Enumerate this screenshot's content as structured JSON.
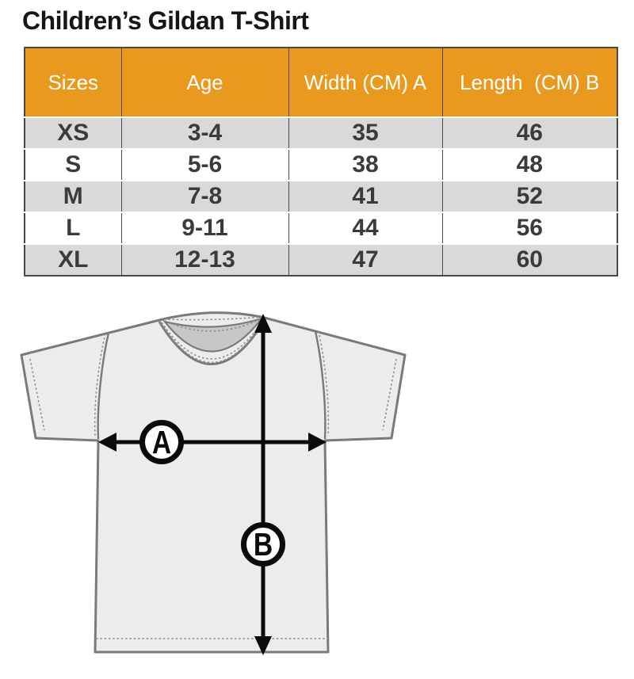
{
  "title": "Children’s Gildan T-Shirt",
  "table": {
    "headers": [
      "Sizes",
      "Age",
      "Width (CM) A",
      "Length  (CM) B"
    ],
    "rows": [
      [
        "XS",
        "3-4",
        "35",
        "46"
      ],
      [
        "S",
        "5-6",
        "38",
        "48"
      ],
      [
        "M",
        "7-8",
        "41",
        "52"
      ],
      [
        "L",
        "9-11",
        "44",
        "56"
      ],
      [
        "XL",
        "12-13",
        "47",
        "60"
      ]
    ]
  },
  "diagram": {
    "width_marker": "A",
    "length_marker": "B"
  },
  "colors": {
    "header_bg": "#E8991E",
    "header_text": "#FFFFFF",
    "row_alt_bg": "#D9D9D9",
    "cell_text": "#3B3B3D",
    "table_border": "#4A4A4A",
    "shirt_fill": "#ECECEC",
    "shirt_outline": "#7A7A7E",
    "neck_fill": "#C7C7C7",
    "marker_color": "#0B0B0B"
  },
  "chart_data": {
    "type": "table",
    "title": "Children’s Gildan T-Shirt",
    "columns": [
      "Sizes",
      "Age",
      "Width (CM) A",
      "Length (CM) B"
    ],
    "rows": [
      [
        "XS",
        "3-4",
        35,
        46
      ],
      [
        "S",
        "5-6",
        38,
        48
      ],
      [
        "M",
        "7-8",
        41,
        52
      ],
      [
        "L",
        "9-11",
        44,
        56
      ],
      [
        "XL",
        "12-13",
        47,
        60
      ]
    ]
  }
}
